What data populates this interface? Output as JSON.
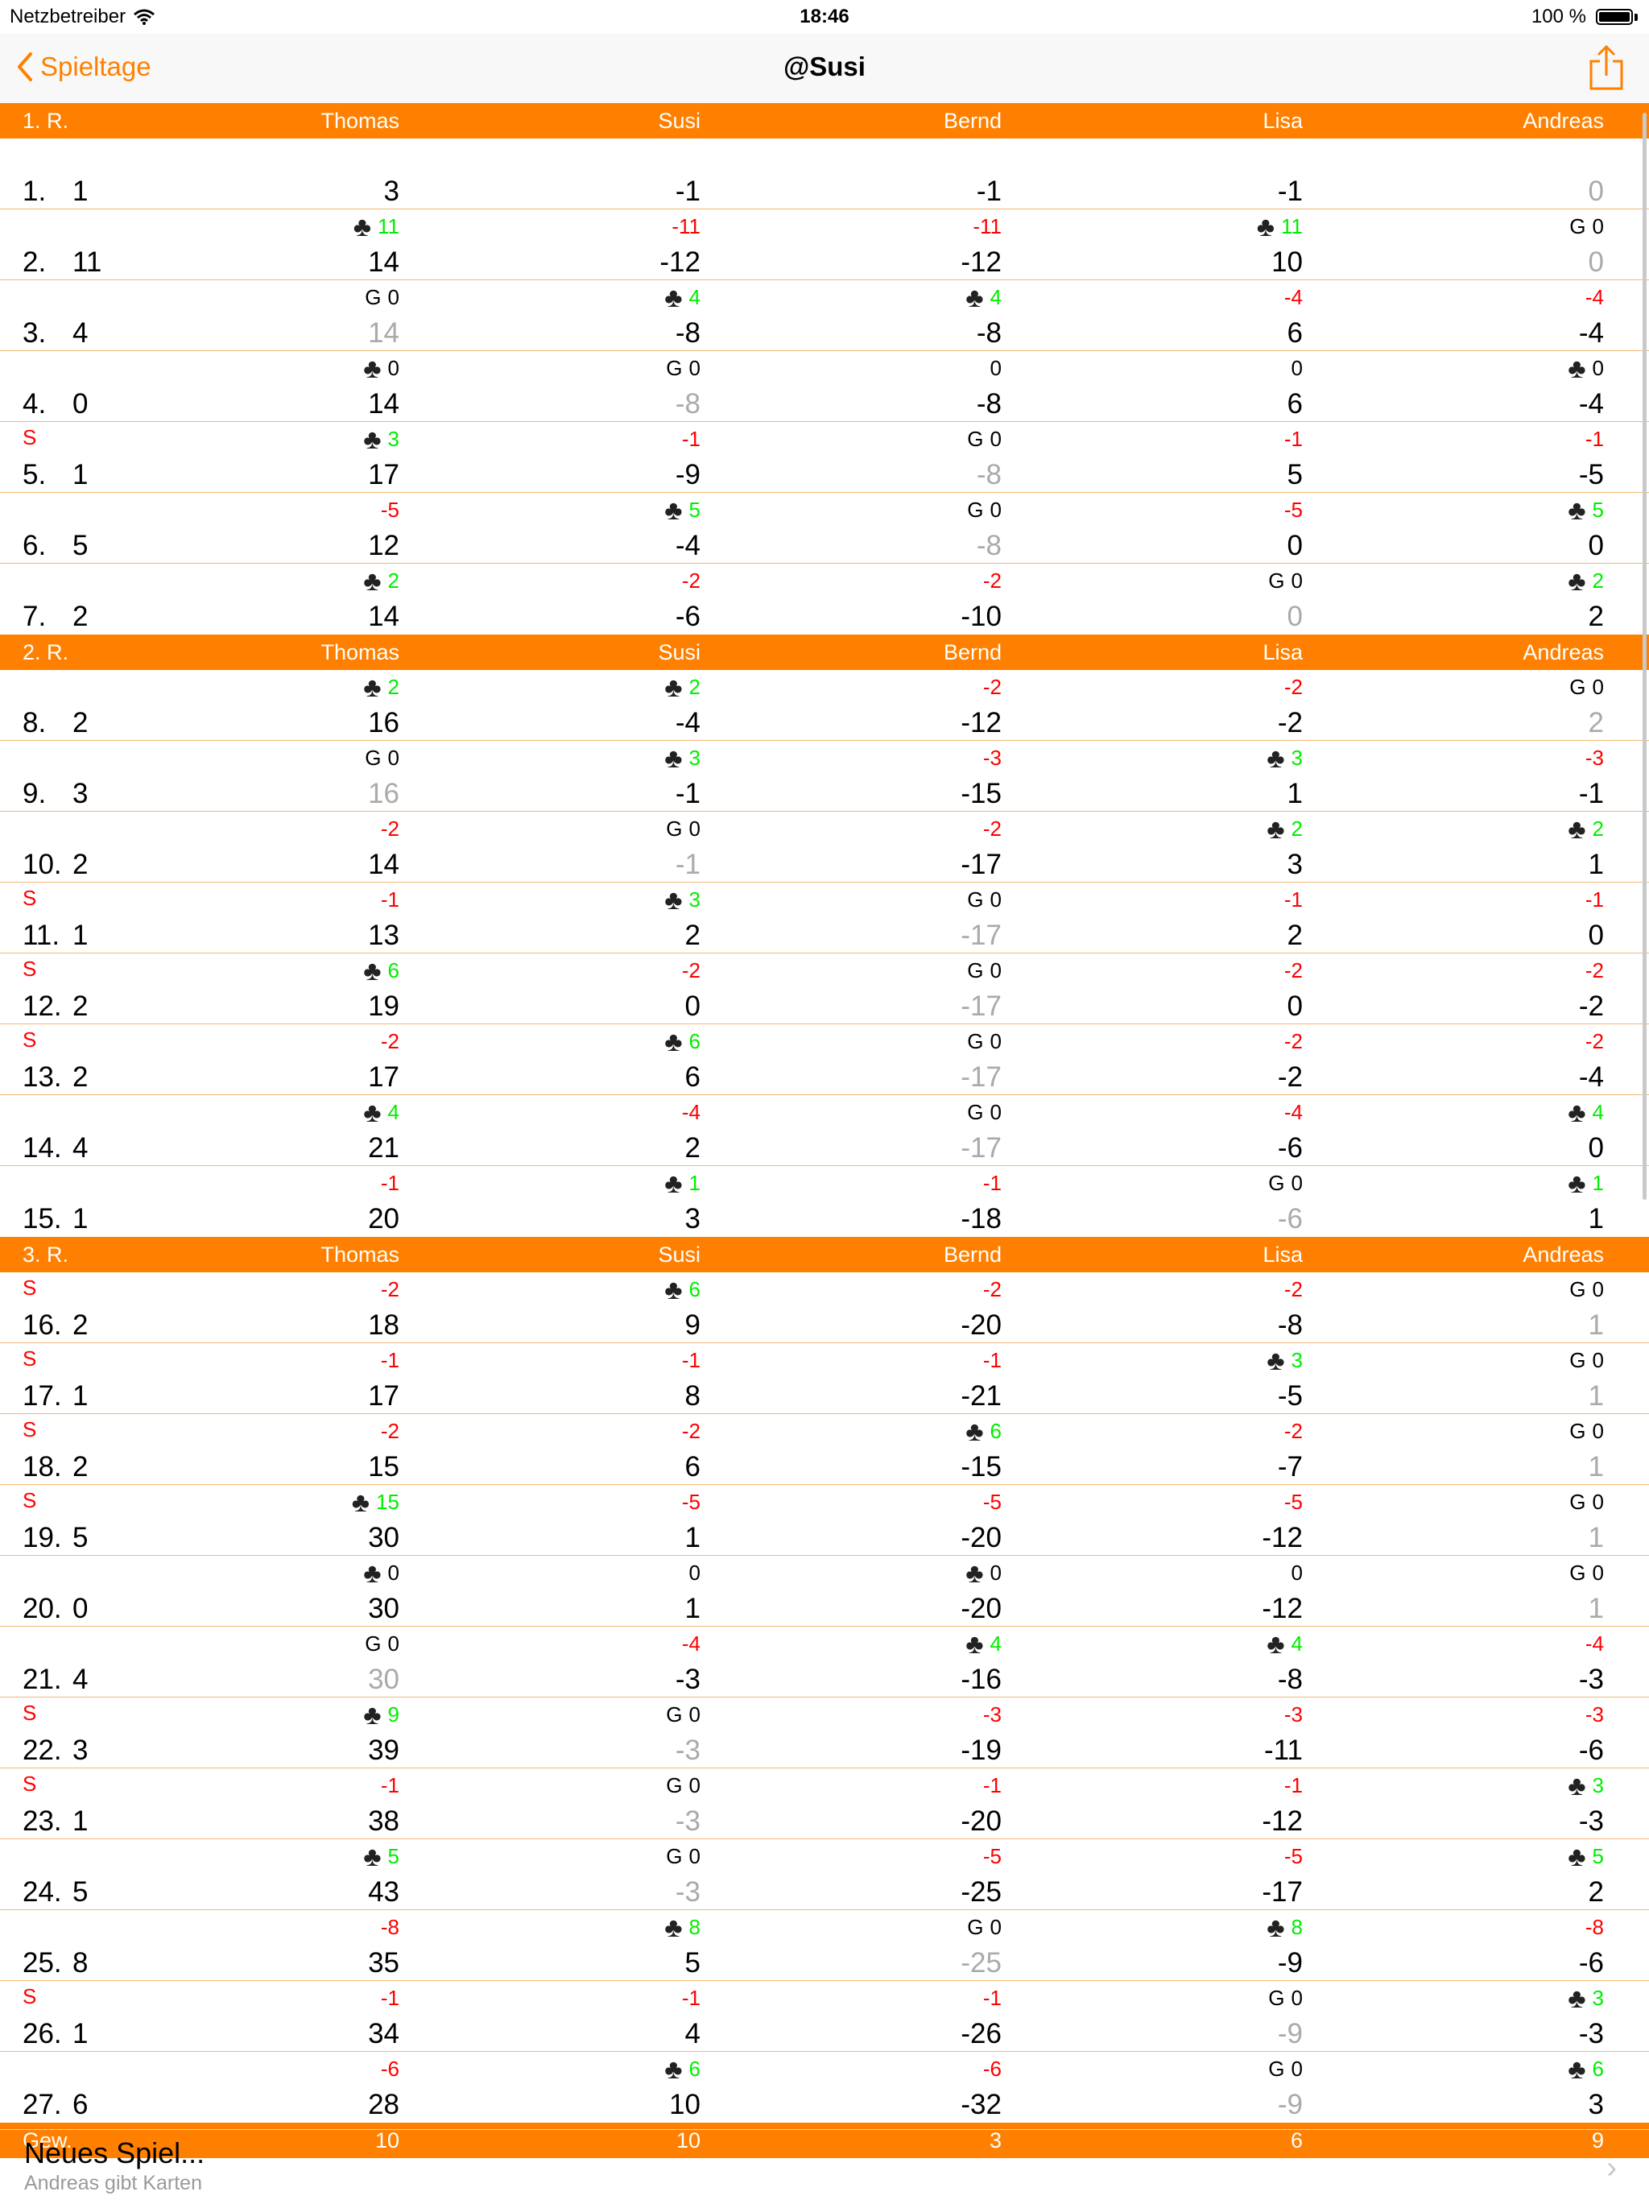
{
  "status": {
    "carrier": "Netzbetreiber",
    "time": "18:46",
    "battery": "100 %"
  },
  "nav": {
    "back_label": "Spieltage",
    "title": "@Susi",
    "share_icon": "share-icon"
  },
  "players": [
    "Thomas",
    "Susi",
    "Bernd",
    "Lisa",
    "Andreas"
  ],
  "sections": [
    {
      "label": "1. R.",
      "games": [
        {
          "num": "1.",
          "bock": "1",
          "s": "",
          "cells": [
            [
              "",
              "",
              "3",
              ""
            ],
            [
              "",
              "",
              "-1",
              ""
            ],
            [
              "",
              "",
              "-1",
              ""
            ],
            [
              "",
              "",
              "-1",
              ""
            ],
            [
              "",
              "",
              "0",
              "gray"
            ]
          ]
        },
        {
          "num": "2.",
          "bock": "11",
          "s": "",
          "cells": [
            [
              "club",
              "11",
              "14",
              ""
            ],
            [
              "",
              "-11",
              "-12",
              ""
            ],
            [
              "",
              "-11",
              "-12",
              ""
            ],
            [
              "club",
              "11",
              "10",
              ""
            ],
            [
              "G",
              "0",
              "0",
              "gray"
            ]
          ]
        },
        {
          "num": "3.",
          "bock": "4",
          "s": "",
          "cells": [
            [
              "G",
              "0",
              "14",
              "gray"
            ],
            [
              "club",
              "4",
              "-8",
              ""
            ],
            [
              "club",
              "4",
              "-8",
              ""
            ],
            [
              "",
              "-4",
              "6",
              ""
            ],
            [
              "",
              "-4",
              "-4",
              ""
            ]
          ]
        },
        {
          "num": "4.",
          "bock": "0",
          "s": "",
          "cells": [
            [
              "club",
              "0",
              "14",
              ""
            ],
            [
              "G",
              "0",
              "-8",
              "gray"
            ],
            [
              "",
              "0",
              "-8",
              ""
            ],
            [
              "",
              "0",
              "6",
              ""
            ],
            [
              "club",
              "0",
              "-4",
              ""
            ]
          ]
        },
        {
          "num": "5.",
          "bock": "1",
          "s": "S",
          "cells": [
            [
              "club",
              "3",
              "17",
              ""
            ],
            [
              "",
              "-1",
              "-9",
              ""
            ],
            [
              "G",
              "0",
              "-8",
              "gray"
            ],
            [
              "",
              "-1",
              "5",
              ""
            ],
            [
              "",
              "-1",
              "-5",
              ""
            ]
          ]
        },
        {
          "num": "6.",
          "bock": "5",
          "s": "",
          "cells": [
            [
              "",
              "-5",
              "12",
              ""
            ],
            [
              "club",
              "5",
              "-4",
              ""
            ],
            [
              "G",
              "0",
              "-8",
              "gray"
            ],
            [
              "",
              "-5",
              "0",
              ""
            ],
            [
              "club",
              "5",
              "0",
              ""
            ]
          ]
        },
        {
          "num": "7.",
          "bock": "2",
          "s": "",
          "cells": [
            [
              "club",
              "2",
              "14",
              ""
            ],
            [
              "",
              "-2",
              "-6",
              ""
            ],
            [
              "",
              "-2",
              "-10",
              ""
            ],
            [
              "G",
              "0",
              "0",
              "gray"
            ],
            [
              "club",
              "2",
              "2",
              ""
            ]
          ]
        }
      ]
    },
    {
      "label": "2. R.",
      "games": [
        {
          "num": "8.",
          "bock": "2",
          "s": "",
          "cells": [
            [
              "club",
              "2",
              "16",
              ""
            ],
            [
              "club",
              "2",
              "-4",
              ""
            ],
            [
              "",
              "-2",
              "-12",
              ""
            ],
            [
              "",
              "-2",
              "-2",
              ""
            ],
            [
              "G",
              "0",
              "2",
              "gray"
            ]
          ]
        },
        {
          "num": "9.",
          "bock": "3",
          "s": "",
          "cells": [
            [
              "G",
              "0",
              "16",
              "gray"
            ],
            [
              "club",
              "3",
              "-1",
              ""
            ],
            [
              "",
              "-3",
              "-15",
              ""
            ],
            [
              "club",
              "3",
              "1",
              ""
            ],
            [
              "",
              "-3",
              "-1",
              ""
            ]
          ]
        },
        {
          "num": "10.",
          "bock": "2",
          "s": "",
          "cells": [
            [
              "",
              "-2",
              "14",
              ""
            ],
            [
              "G",
              "0",
              "-1",
              "gray"
            ],
            [
              "",
              "-2",
              "-17",
              ""
            ],
            [
              "club",
              "2",
              "3",
              ""
            ],
            [
              "club",
              "2",
              "1",
              ""
            ]
          ]
        },
        {
          "num": "11.",
          "bock": "1",
          "s": "S",
          "cells": [
            [
              "",
              "-1",
              "13",
              ""
            ],
            [
              "club",
              "3",
              "2",
              ""
            ],
            [
              "G",
              "0",
              "-17",
              "gray"
            ],
            [
              "",
              "-1",
              "2",
              ""
            ],
            [
              "",
              "-1",
              "0",
              ""
            ]
          ]
        },
        {
          "num": "12.",
          "bock": "2",
          "s": "S",
          "cells": [
            [
              "club",
              "6",
              "19",
              ""
            ],
            [
              "",
              "-2",
              "0",
              ""
            ],
            [
              "G",
              "0",
              "-17",
              "gray"
            ],
            [
              "",
              "-2",
              "0",
              ""
            ],
            [
              "",
              "-2",
              "-2",
              ""
            ]
          ]
        },
        {
          "num": "13.",
          "bock": "2",
          "s": "S",
          "cells": [
            [
              "",
              "-2",
              "17",
              ""
            ],
            [
              "club",
              "6",
              "6",
              ""
            ],
            [
              "G",
              "0",
              "-17",
              "gray"
            ],
            [
              "",
              "-2",
              "-2",
              ""
            ],
            [
              "",
              "-2",
              "-4",
              ""
            ]
          ]
        },
        {
          "num": "14.",
          "bock": "4",
          "s": "",
          "cells": [
            [
              "club",
              "4",
              "21",
              ""
            ],
            [
              "",
              "-4",
              "2",
              ""
            ],
            [
              "G",
              "0",
              "-17",
              "gray"
            ],
            [
              "",
              "-4",
              "-6",
              ""
            ],
            [
              "club",
              "4",
              "0",
              ""
            ]
          ]
        },
        {
          "num": "15.",
          "bock": "1",
          "s": "",
          "cells": [
            [
              "",
              "-1",
              "20",
              ""
            ],
            [
              "club",
              "1",
              "3",
              ""
            ],
            [
              "",
              "-1",
              "-18",
              ""
            ],
            [
              "G",
              "0",
              "-6",
              "gray"
            ],
            [
              "club",
              "1",
              "1",
              ""
            ]
          ]
        }
      ]
    },
    {
      "label": "3. R.",
      "games": [
        {
          "num": "16.",
          "bock": "2",
          "s": "S",
          "cells": [
            [
              "",
              "-2",
              "18",
              ""
            ],
            [
              "club",
              "6",
              "9",
              ""
            ],
            [
              "",
              "-2",
              "-20",
              ""
            ],
            [
              "",
              "-2",
              "-8",
              ""
            ],
            [
              "G",
              "0",
              "1",
              "gray"
            ]
          ]
        },
        {
          "num": "17.",
          "bock": "1",
          "s": "S",
          "cells": [
            [
              "",
              "-1",
              "17",
              ""
            ],
            [
              "",
              "-1",
              "8",
              ""
            ],
            [
              "",
              "-1",
              "-21",
              ""
            ],
            [
              "club",
              "3",
              "-5",
              ""
            ],
            [
              "G",
              "0",
              "1",
              "gray"
            ]
          ]
        },
        {
          "num": "18.",
          "bock": "2",
          "s": "S",
          "cells": [
            [
              "",
              "-2",
              "15",
              ""
            ],
            [
              "",
              "-2",
              "6",
              ""
            ],
            [
              "club",
              "6",
              "-15",
              ""
            ],
            [
              "",
              "-2",
              "-7",
              ""
            ],
            [
              "G",
              "0",
              "1",
              "gray"
            ]
          ]
        },
        {
          "num": "19.",
          "bock": "5",
          "s": "S",
          "cells": [
            [
              "club",
              "15",
              "30",
              ""
            ],
            [
              "",
              "-5",
              "1",
              ""
            ],
            [
              "",
              "-5",
              "-20",
              ""
            ],
            [
              "",
              "-5",
              "-12",
              ""
            ],
            [
              "G",
              "0",
              "1",
              "gray"
            ]
          ]
        },
        {
          "num": "20.",
          "bock": "0",
          "s": "",
          "cells": [
            [
              "club",
              "0",
              "30",
              ""
            ],
            [
              "",
              "0",
              "1",
              ""
            ],
            [
              "club",
              "0",
              "-20",
              ""
            ],
            [
              "",
              "0",
              "-12",
              ""
            ],
            [
              "G",
              "0",
              "1",
              "gray"
            ]
          ]
        },
        {
          "num": "21.",
          "bock": "4",
          "s": "",
          "cells": [
            [
              "G",
              "0",
              "30",
              "gray"
            ],
            [
              "",
              "-4",
              "-3",
              ""
            ],
            [
              "club",
              "4",
              "-16",
              ""
            ],
            [
              "club",
              "4",
              "-8",
              ""
            ],
            [
              "",
              "-4",
              "-3",
              ""
            ]
          ]
        },
        {
          "num": "22.",
          "bock": "3",
          "s": "S",
          "cells": [
            [
              "club",
              "9",
              "39",
              ""
            ],
            [
              "G",
              "0",
              "-3",
              "gray"
            ],
            [
              "",
              "-3",
              "-19",
              ""
            ],
            [
              "",
              "-3",
              "-11",
              ""
            ],
            [
              "",
              "-3",
              "-6",
              ""
            ]
          ]
        },
        {
          "num": "23.",
          "bock": "1",
          "s": "S",
          "cells": [
            [
              "",
              "-1",
              "38",
              ""
            ],
            [
              "G",
              "0",
              "-3",
              "gray"
            ],
            [
              "",
              "-1",
              "-20",
              ""
            ],
            [
              "",
              "-1",
              "-12",
              ""
            ],
            [
              "club",
              "3",
              "-3",
              ""
            ]
          ]
        },
        {
          "num": "24.",
          "bock": "5",
          "s": "",
          "cells": [
            [
              "club",
              "5",
              "43",
              ""
            ],
            [
              "G",
              "0",
              "-3",
              "gray"
            ],
            [
              "",
              "-5",
              "-25",
              ""
            ],
            [
              "",
              "-5",
              "-17",
              ""
            ],
            [
              "club",
              "5",
              "2",
              ""
            ]
          ]
        },
        {
          "num": "25.",
          "bock": "8",
          "s": "",
          "cells": [
            [
              "",
              "-8",
              "35",
              ""
            ],
            [
              "club",
              "8",
              "5",
              ""
            ],
            [
              "G",
              "0",
              "-25",
              "gray"
            ],
            [
              "club",
              "8",
              "-9",
              ""
            ],
            [
              "",
              "-8",
              "-6",
              ""
            ]
          ]
        },
        {
          "num": "26.",
          "bock": "1",
          "s": "S",
          "cells": [
            [
              "",
              "-1",
              "34",
              ""
            ],
            [
              "",
              "-1",
              "4",
              ""
            ],
            [
              "",
              "-1",
              "-26",
              ""
            ],
            [
              "G",
              "0",
              "-9",
              "gray"
            ],
            [
              "club",
              "3",
              "-3",
              ""
            ]
          ]
        },
        {
          "num": "27.",
          "bock": "6",
          "s": "",
          "cells": [
            [
              "",
              "-6",
              "28",
              ""
            ],
            [
              "club",
              "6",
              "10",
              ""
            ],
            [
              "",
              "-6",
              "-32",
              ""
            ],
            [
              "G",
              "0",
              "-9",
              "gray"
            ],
            [
              "club",
              "6",
              "3",
              ""
            ]
          ]
        }
      ]
    }
  ],
  "footer": {
    "label": "Gew.",
    "values": [
      "10",
      "10",
      "3",
      "6",
      "9"
    ]
  },
  "new_game": {
    "title": "Neues Spiel...",
    "subtitle": "Andreas gibt Karten"
  },
  "colors": {
    "accent": "#ff8000",
    "positive": "#00ee00",
    "negative": "#ff0000",
    "dimmed": "#aaaaaa",
    "separator": "#f2b877"
  }
}
